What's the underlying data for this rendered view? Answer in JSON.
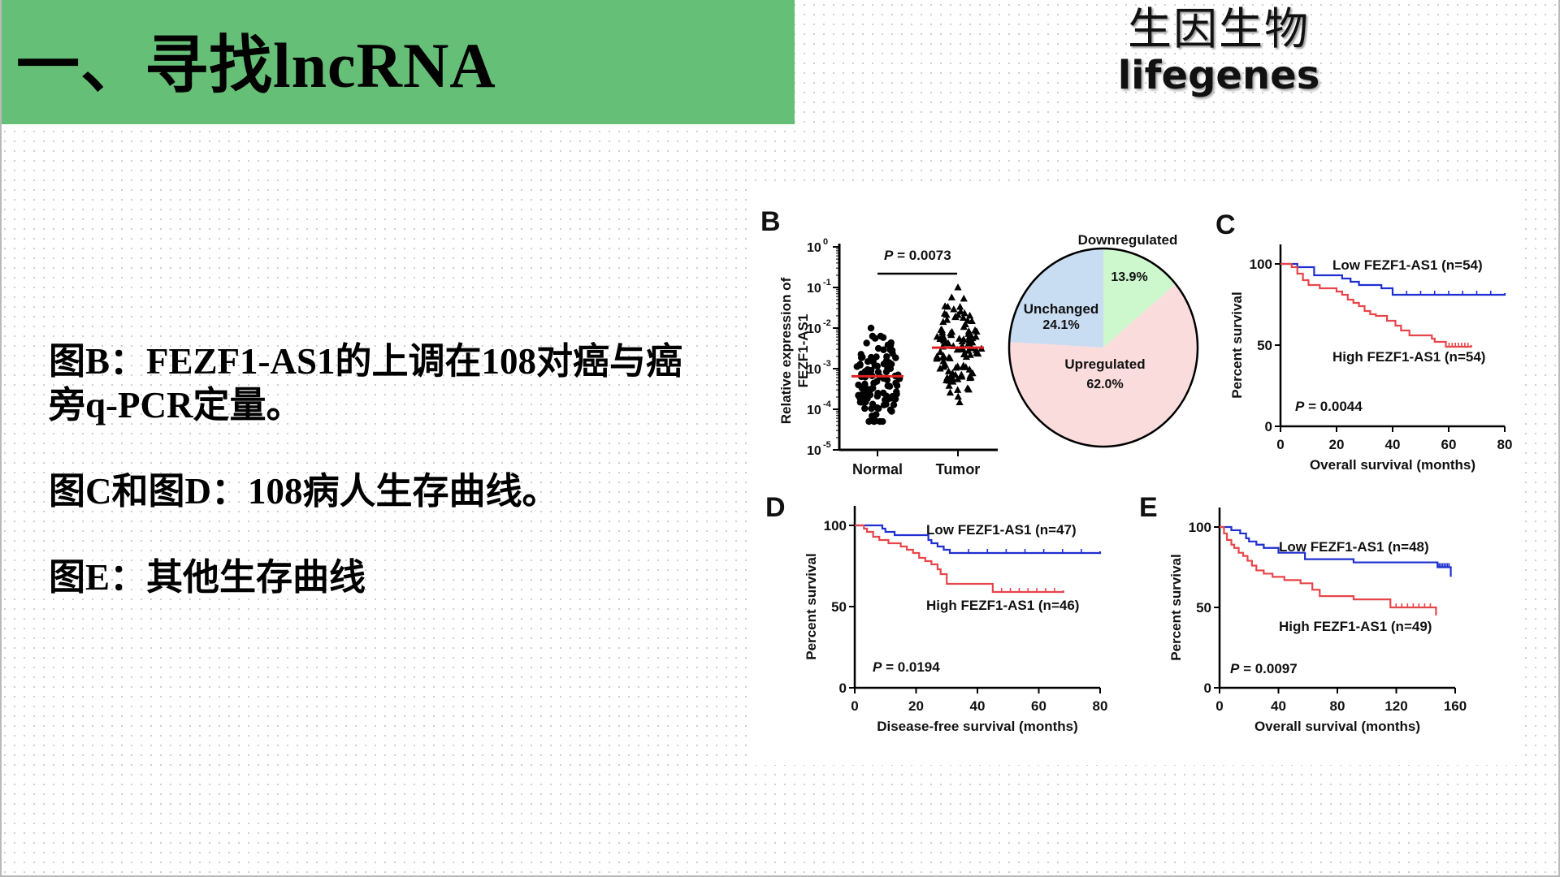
{
  "header": {
    "title": "一、寻找lncRNA",
    "bar_color": "#66bf77"
  },
  "logo": {
    "cn": "生因生物",
    "en": "lifegenes"
  },
  "notes": [
    "图B：FEZF1-AS1的上调在108对癌与癌旁q-PCR定量。",
    "图C和图D：108病人生存曲线。",
    "图E：其他生存曲线"
  ],
  "colors": {
    "low": "#1f2fd0",
    "high": "#e8454a",
    "median": "#e02020",
    "pie_down": "#cdf7cd",
    "pie_unchanged": "#c8dcf2",
    "pie_up": "#fbdcdc"
  },
  "chart_data": [
    {
      "panel": "B",
      "type": "scatter",
      "title": "",
      "ylabel": "Relative expression of FEZF1-AS1",
      "yscale": "log",
      "yticks": [
        "10^0",
        "10^-1",
        "10^-2",
        "10^-3",
        "10^-4",
        "10^-5"
      ],
      "ylim": [
        1e-05,
        1
      ],
      "categories": [
        "Normal",
        "Tumor"
      ],
      "markers": [
        "circle",
        "triangle"
      ],
      "n_per_group": 108,
      "median": [
        0.00065,
        0.0033
      ],
      "range": [
        [
          5e-05,
          0.01
        ],
        [
          6e-05,
          0.1
        ]
      ],
      "annotation": "P = 0.0073"
    },
    {
      "panel": "B-pie",
      "type": "pie",
      "labels": [
        "Downregulated",
        "Unchanged",
        "Upregulated"
      ],
      "values": [
        13.9,
        24.1,
        62.0
      ],
      "value_labels": [
        "13.9%",
        "24.1%",
        "62.0%"
      ]
    },
    {
      "panel": "C",
      "type": "line",
      "xlabel": "Overall survival (months)",
      "ylabel": "Percent survival",
      "xlim": [
        0,
        80
      ],
      "ylim": [
        0,
        100
      ],
      "xticks": [
        0,
        20,
        40,
        60,
        80
      ],
      "yticks": [
        0,
        50,
        100
      ],
      "annotation": "P = 0.0044",
      "series": [
        {
          "name": "Low FEZF1-AS1 (n=54)",
          "x": [
            0,
            6,
            12,
            22,
            25,
            28,
            36,
            40,
            80
          ],
          "y": [
            100,
            98,
            93,
            91,
            89,
            87,
            85,
            81,
            82
          ]
        },
        {
          "name": "High FEZF1-AS1 (n=54)",
          "x": [
            0,
            4,
            6,
            8,
            10,
            14,
            20,
            22,
            24,
            26,
            28,
            30,
            32,
            34,
            38,
            41,
            43,
            46,
            54,
            55,
            59,
            68
          ],
          "y": [
            100,
            98,
            94,
            90,
            87,
            85,
            83,
            81,
            78,
            76,
            74,
            71,
            69,
            68,
            65,
            62,
            59,
            56,
            54,
            52,
            49,
            50
          ]
        }
      ]
    },
    {
      "panel": "D",
      "type": "line",
      "xlabel": "Disease-free survival (months)",
      "ylabel": "Percent survival",
      "xlim": [
        0,
        80
      ],
      "ylim": [
        0,
        100
      ],
      "xticks": [
        0,
        20,
        40,
        60,
        80
      ],
      "yticks": [
        0,
        50,
        100
      ],
      "annotation": "P = 0.0194",
      "series": [
        {
          "name": "Low FEZF1-AS1 (n=47)",
          "x": [
            0,
            9,
            10,
            13,
            24,
            25,
            27,
            29,
            31,
            80
          ],
          "y": [
            100,
            98,
            96,
            94,
            91,
            89,
            87,
            85,
            83,
            84
          ]
        },
        {
          "name": "High FEZF1-AS1 (n=46)",
          "x": [
            0,
            3,
            4,
            6,
            8,
            11,
            15,
            17,
            19,
            21,
            23,
            25,
            27,
            28,
            30,
            45,
            68
          ],
          "y": [
            100,
            98,
            96,
            93,
            91,
            89,
            87,
            85,
            83,
            80,
            78,
            76,
            73,
            70,
            64,
            59,
            60
          ]
        }
      ]
    },
    {
      "panel": "E",
      "type": "line",
      "xlabel": "Overall survival (months)",
      "ylabel": "Percent survival",
      "xlim": [
        0,
        160
      ],
      "ylim": [
        0,
        100
      ],
      "xticks": [
        0,
        40,
        80,
        120,
        160
      ],
      "yticks": [
        0,
        50,
        100
      ],
      "annotation": "P = 0.0097",
      "series": [
        {
          "name": "Low FEZF1-AS1 (n=48)",
          "x": [
            0,
            8,
            14,
            18,
            20,
            25,
            30,
            40,
            58,
            91,
            148,
            157
          ],
          "y": [
            100,
            98,
            96,
            93,
            91,
            89,
            87,
            84,
            80,
            78,
            75,
            69
          ]
        },
        {
          "name": "High FEZF1-AS1 (n=49)",
          "x": [
            0,
            3,
            5,
            8,
            10,
            13,
            16,
            19,
            22,
            25,
            30,
            36,
            44,
            55,
            63,
            68,
            91,
            116,
            147
          ],
          "y": [
            100,
            96,
            92,
            89,
            87,
            84,
            82,
            79,
            76,
            73,
            71,
            69,
            67,
            65,
            61,
            57,
            55,
            50,
            45
          ]
        }
      ]
    }
  ]
}
